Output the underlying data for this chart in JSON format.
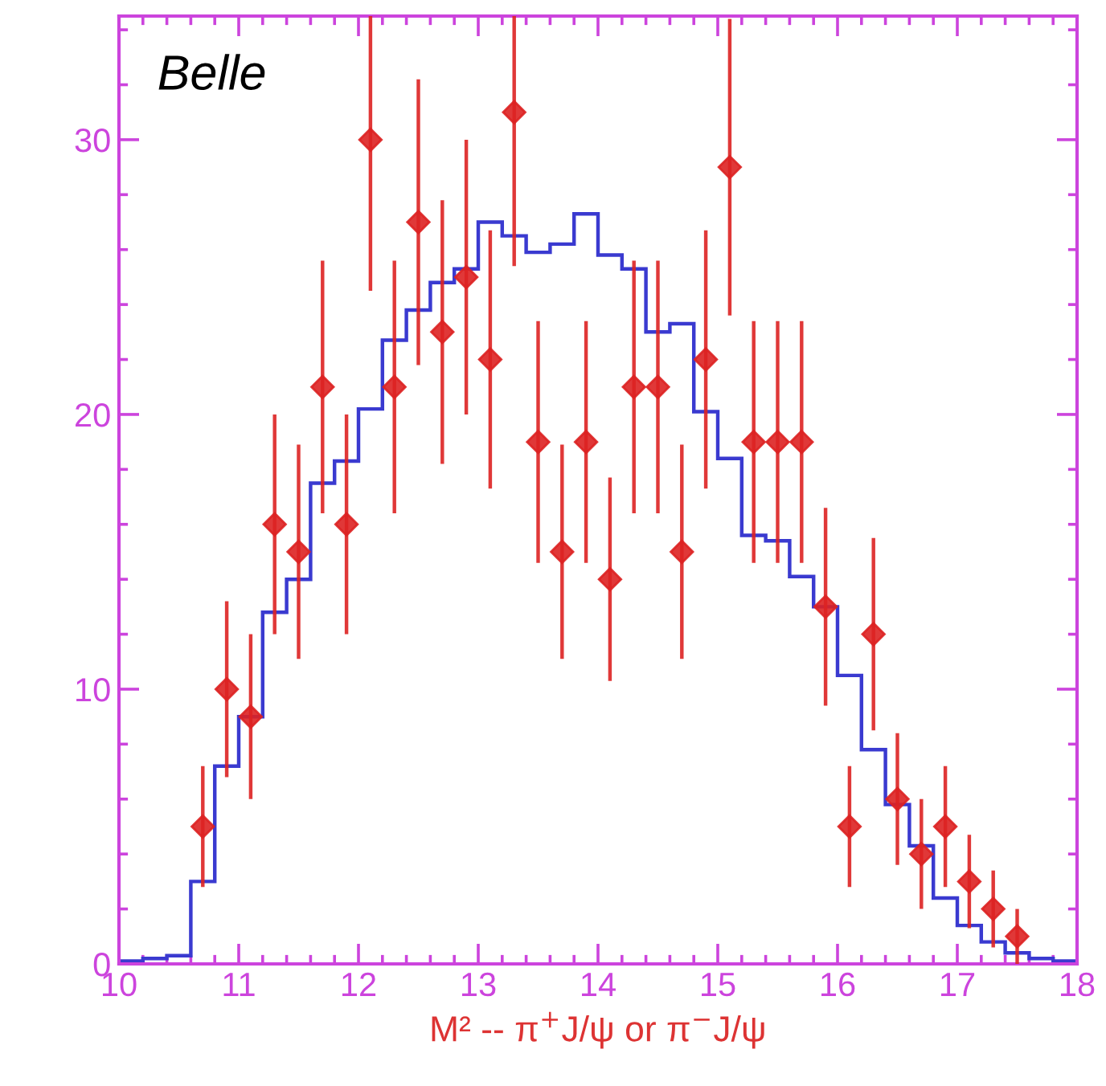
{
  "chart_data": {
    "type": "histogram",
    "xlabel": "M² -- π$^{+}$J/ψ or π$^{−}$J/ψ",
    "annotations": [
      "Belle"
    ],
    "xlim": [
      10,
      18
    ],
    "xticks": [
      10,
      11,
      12,
      13,
      14,
      15,
      16,
      17,
      18
    ],
    "ylim": [
      0,
      34.5
    ],
    "yticks": [
      0,
      10,
      20,
      30
    ],
    "grid": false,
    "legend": false,
    "series": [
      {
        "color": "#3a3ad0",
        "bins": [
          10.0,
          10.2,
          10.4,
          10.6,
          10.8,
          11.0,
          11.2,
          11.4,
          11.6,
          11.8,
          12.0,
          12.2,
          12.4,
          12.6,
          12.8,
          13.0,
          13.2,
          13.4,
          13.6,
          13.8,
          14.0,
          14.2,
          14.4,
          14.6,
          14.8,
          15.0,
          15.2,
          15.4,
          15.6,
          15.8,
          16.0,
          16.2,
          16.4,
          16.6,
          16.8,
          17.0,
          17.2,
          17.4,
          17.6,
          17.8,
          18.0
        ],
        "values": [
          0.1,
          0.2,
          0.3,
          3,
          7.2,
          9,
          12.8,
          14,
          17.5,
          18.3,
          20.2,
          22.7,
          23.8,
          24.8,
          25.3,
          27,
          26.5,
          25.9,
          26.2,
          27.3,
          25.8,
          25.3,
          23,
          23.3,
          20.1,
          18.4,
          15.6,
          15.4,
          14.1,
          13,
          10.5,
          7.8,
          5.8,
          4.3,
          2.4,
          1.4,
          0.8,
          0.4,
          0.2,
          0.1
        ]
      },
      {
        "type": "scatter",
        "color": "#dd2222",
        "marker": "diamond",
        "x": [
          10.7,
          10.9,
          11.1,
          11.3,
          11.5,
          11.7,
          11.9,
          12.1,
          12.3,
          12.5,
          12.7,
          12.9,
          13.1,
          13.3,
          13.5,
          13.7,
          13.9,
          14.1,
          14.3,
          14.5,
          14.7,
          14.9,
          15.1,
          15.3,
          15.5,
          15.7,
          15.9,
          16.1,
          16.3,
          16.5,
          16.7,
          16.9,
          17.1,
          17.3,
          17.5
        ],
        "values": [
          5,
          10,
          9,
          16,
          15,
          21,
          16,
          30,
          21,
          27,
          23,
          25,
          22,
          31,
          19,
          15,
          19,
          14,
          21,
          21,
          15,
          22,
          29,
          19,
          19,
          19,
          13,
          5,
          12,
          6,
          4,
          5,
          3,
          2,
          1
        ],
        "errors": [
          2.2,
          3.2,
          3,
          4,
          3.9,
          4.6,
          4,
          [
            24.5,
            34.5
          ],
          4.6,
          5.2,
          4.8,
          5,
          4.7,
          [
            25.4,
            34.5
          ],
          4.4,
          3.9,
          4.4,
          3.7,
          4.6,
          4.6,
          3.9,
          4.7,
          5.4,
          4.4,
          4.4,
          4.4,
          3.6,
          2.2,
          3.5,
          2.4,
          2,
          2.2,
          1.7,
          1.4,
          1
        ]
      }
    ]
  }
}
